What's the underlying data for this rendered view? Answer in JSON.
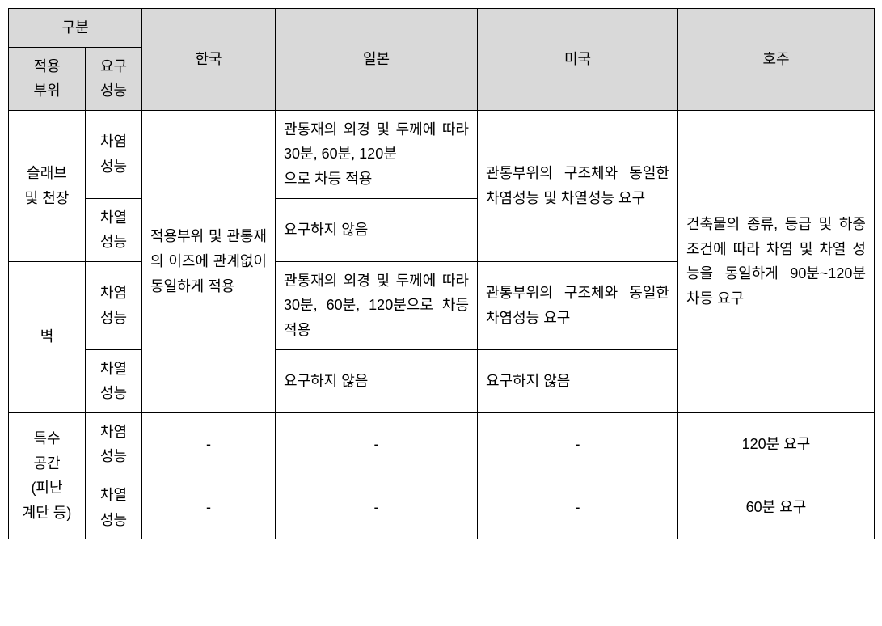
{
  "table": {
    "headers": {
      "category_group": "구분",
      "applied_part": "적용\n부위",
      "required_perf": "요구\n성능",
      "korea": "한국",
      "japan": "일본",
      "usa": "미국",
      "australia": "호주"
    },
    "row_labels": {
      "slab_ceiling": "슬래브\n및 천장",
      "wall": "벽",
      "special_space": "특수\n공간\n(피난\n계단 등)",
      "fire_block": "차염\n성능",
      "heat_insul": "차열\n성능"
    },
    "cells": {
      "korea_merged": "적용부위 및 관통재의 이즈에 관계없이 동일하게 적용",
      "japan_slab_fire": "관통재의 외경 및 두께에 따라 30분, 60분, 120분\n으로 차등 적용",
      "japan_slab_heat": "요구하지 않음",
      "japan_wall_fire": "관통재의 외경 및 두께에 따라 30분, 60분, 120분으로 차등 적용",
      "japan_wall_heat": "요구하지 않음",
      "usa_merged1": "관통부위의 구조체와 동일한 차염성능 및 차열성능 요구",
      "usa_wall_fire": "관통부위의 구조체와 동일한 차염성능 요구",
      "usa_wall_heat": "요구하지 않음",
      "aus_merged": "건축물의 종류, 등급 및 하중조건에 따라 차염 및 차열 성능을 동일하게 90분~120분 차등 요구",
      "dash": "-",
      "aus_120": "120분 요구",
      "aus_60": "60분 요구"
    },
    "styling": {
      "header_bg": "#d9d9d9",
      "border_color": "#000000",
      "font_size": 18,
      "cell_padding": 8,
      "line_height": 1.7
    }
  }
}
